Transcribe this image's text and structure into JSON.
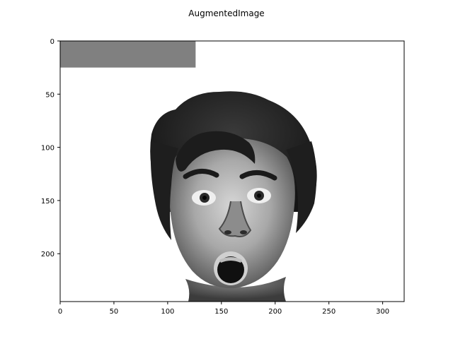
{
  "title": "AugmentedImage",
  "image": {
    "subject": "grayscale portrait photo of a man with an open-mouthed surprised expression",
    "occlusion_patch_color": "#808080",
    "background_color": "#ffffff"
  },
  "axes": {
    "x_range": [
      0,
      320
    ],
    "y_range": [
      0,
      245
    ],
    "x_ticks": [
      0,
      50,
      100,
      150,
      200,
      250,
      300
    ],
    "y_ticks": [
      0,
      50,
      100,
      150,
      200
    ],
    "x_tick_labels": [
      "0",
      "50",
      "100",
      "150",
      "200",
      "250",
      "300"
    ],
    "y_tick_labels": [
      "0",
      "50",
      "100",
      "150",
      "200"
    ]
  },
  "occlusion_patch": {
    "x0": 0,
    "x1": 126,
    "y0": 0,
    "y1": 25
  }
}
